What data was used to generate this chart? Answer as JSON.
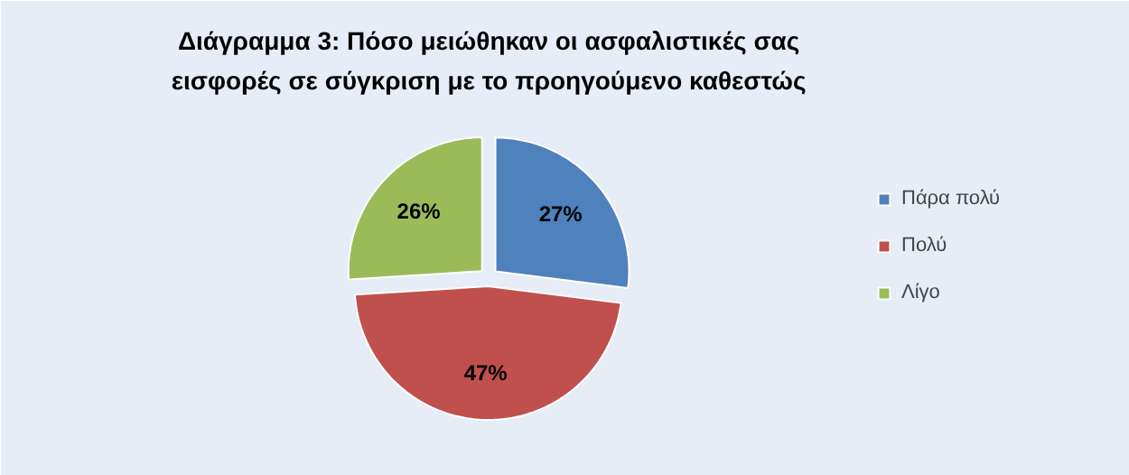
{
  "chart_data": {
    "type": "pie",
    "title": "Διάγραμμα 3: Πόσο μειώθηκαν  οι ασφαλιστικές σας εισφορές σε σύγκριση  με το προηγούμενο καθεστώς",
    "categories": [
      "Πάρα πολύ",
      "Πολύ",
      "Λίγο"
    ],
    "values": [
      27,
      47,
      26
    ],
    "colors": [
      "#4f81bd",
      "#c0504d",
      "#9bbb59"
    ],
    "value_labels": [
      "27%",
      "47%",
      "26%"
    ],
    "legend": "right"
  }
}
